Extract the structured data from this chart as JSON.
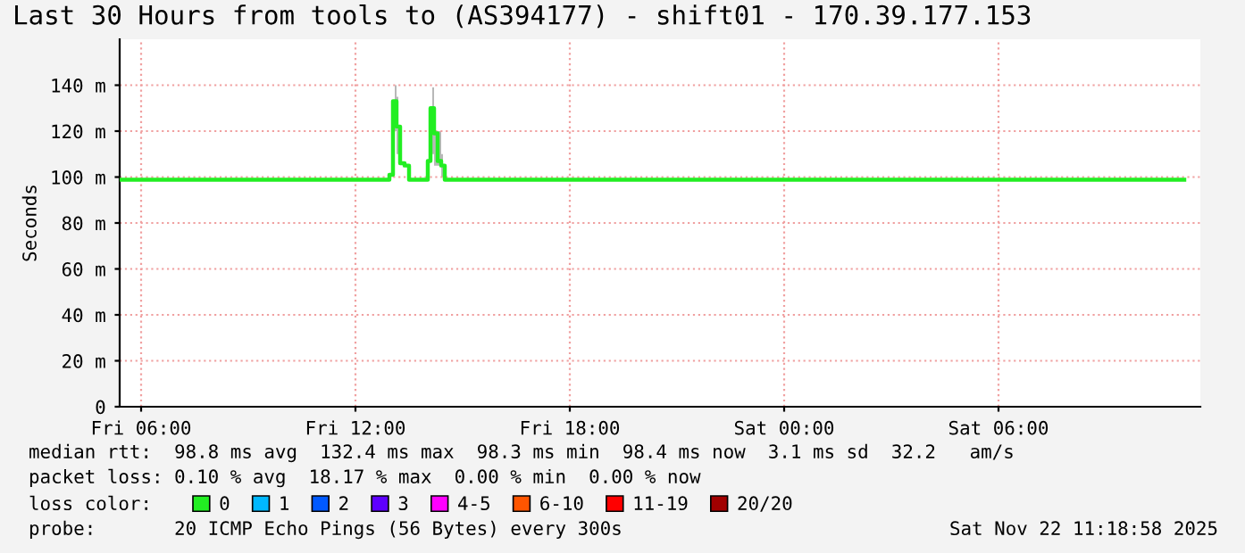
{
  "chart_data": {
    "type": "line",
    "title": "Last 30 Hours from tools to (AS394177) - shift01 - 170.39.177.153",
    "ylabel": "Seconds",
    "xlim": [
      "2025-11-21T05:24",
      "2025-11-22T11:39"
    ],
    "xticks": [
      {
        "value": "2025-11-21T06:00",
        "label": "Fri 06:00"
      },
      {
        "value": "2025-11-21T12:00",
        "label": "Fri 12:00"
      },
      {
        "value": "2025-11-21T18:00",
        "label": "Fri 18:00"
      },
      {
        "value": "2025-11-22T00:00",
        "label": "Sat 00:00"
      },
      {
        "value": "2025-11-22T06:00",
        "label": "Sat 06:00"
      }
    ],
    "ylim": [
      0,
      160
    ],
    "yticks": [
      0,
      {
        "value": 20,
        "label": "20 m"
      },
      {
        "value": 40,
        "label": "40 m"
      },
      {
        "value": 60,
        "label": "60 m"
      },
      {
        "value": 80,
        "label": "80 m"
      },
      {
        "value": 100,
        "label": "100 m"
      },
      {
        "value": 120,
        "label": "120 m"
      },
      {
        "value": 140,
        "label": "140 m"
      }
    ],
    "grid": true,
    "legend": "bottom",
    "legend_title": "loss color:",
    "series": [
      {
        "name": "0",
        "color": "#22ee22",
        "x": [
          "2025-11-21T05:24",
          "2025-11-21T12:54",
          "2025-11-21T13:00",
          "2025-11-21T13:06",
          "2025-11-21T13:12",
          "2025-11-21T13:18",
          "2025-11-21T13:27",
          "2025-11-21T13:33",
          "2025-11-21T14:00",
          "2025-11-21T14:03",
          "2025-11-21T14:09",
          "2025-11-21T14:15",
          "2025-11-21T14:21",
          "2025-11-21T14:27",
          "2025-11-21T14:33",
          "2025-11-22T03:57",
          "2025-11-22T04:00",
          "2025-11-22T04:03",
          "2025-11-22T11:12"
        ],
        "values": [
          98.8,
          98.8,
          101,
          133,
          122,
          106,
          105,
          98.8,
          98.8,
          107,
          130,
          119,
          107,
          105,
          98.8,
          98.8,
          null,
          98.8,
          98.8
        ],
        "lower": [
          null,
          null,
          null,
          120,
          110,
          null,
          null,
          null,
          null,
          null,
          110,
          105,
          105,
          100,
          null,
          null,
          null,
          null,
          null
        ],
        "upper": [
          null,
          null,
          null,
          140,
          135,
          null,
          null,
          null,
          null,
          null,
          139,
          120,
          120,
          110,
          null,
          null,
          null,
          null,
          null
        ]
      },
      {
        "name": "1",
        "color": "#00b8ff"
      },
      {
        "name": "2",
        "color": "#0059ff"
      },
      {
        "name": "3",
        "color": "#5e00ff"
      },
      {
        "name": "4-5",
        "color": "#ff00ff"
      },
      {
        "name": "6-10",
        "color": "#ff5500"
      },
      {
        "name": "11-19",
        "color": "#ff0000"
      },
      {
        "name": "20/20",
        "color": "#a10000"
      }
    ],
    "annotations": [
      "median rtt:  98.8 ms avg  132.4 ms max  98.3 ms min  98.4 ms now  3.1 ms sd  32.2   am/s",
      "packet loss: 0.10 % avg  18.17 % max  0.00 % min  0.00 % now",
      "probe:       20 ICMP Echo Pings (56 Bytes) every 300s",
      "Sat Nov 22 11:18:58 2025"
    ]
  }
}
